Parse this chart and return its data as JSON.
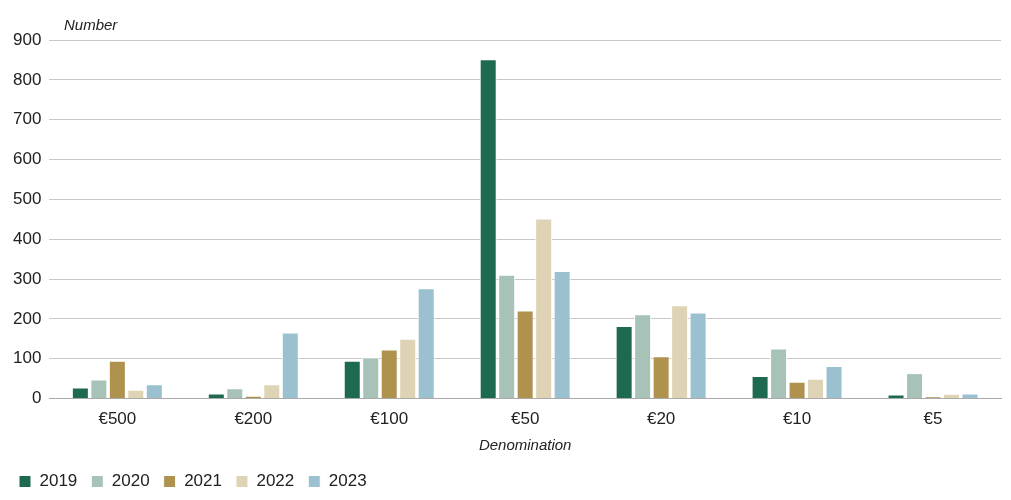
{
  "chart_data": {
    "type": "bar",
    "ylabel": "Number",
    "xlabel": "Denomination",
    "categories": [
      "€500",
      "€200",
      "€100",
      "€50",
      "€20",
      "€10",
      "€5"
    ],
    "series": [
      {
        "name": "2019",
        "color": "#1e6a50",
        "values": [
          28,
          13,
          95,
          852,
          182,
          57,
          10
        ]
      },
      {
        "name": "2020",
        "color": "#a7c3b8",
        "values": [
          48,
          26,
          103,
          311,
          212,
          126,
          64
        ]
      },
      {
        "name": "2021",
        "color": "#b0924f",
        "values": [
          95,
          7,
          123,
          221,
          106,
          42,
          5
        ]
      },
      {
        "name": "2022",
        "color": "#ded3b5",
        "values": [
          22,
          36,
          150,
          452,
          234,
          50,
          12
        ]
      },
      {
        "name": "2023",
        "color": "#9bc0cf",
        "values": [
          36,
          166,
          277,
          320,
          216,
          82,
          13
        ]
      }
    ],
    "ylim": [
      0,
      900
    ],
    "yticks": [
      0,
      100,
      200,
      300,
      400,
      500,
      600,
      700,
      800,
      900
    ],
    "grid": "y",
    "legend": "bottom left"
  }
}
